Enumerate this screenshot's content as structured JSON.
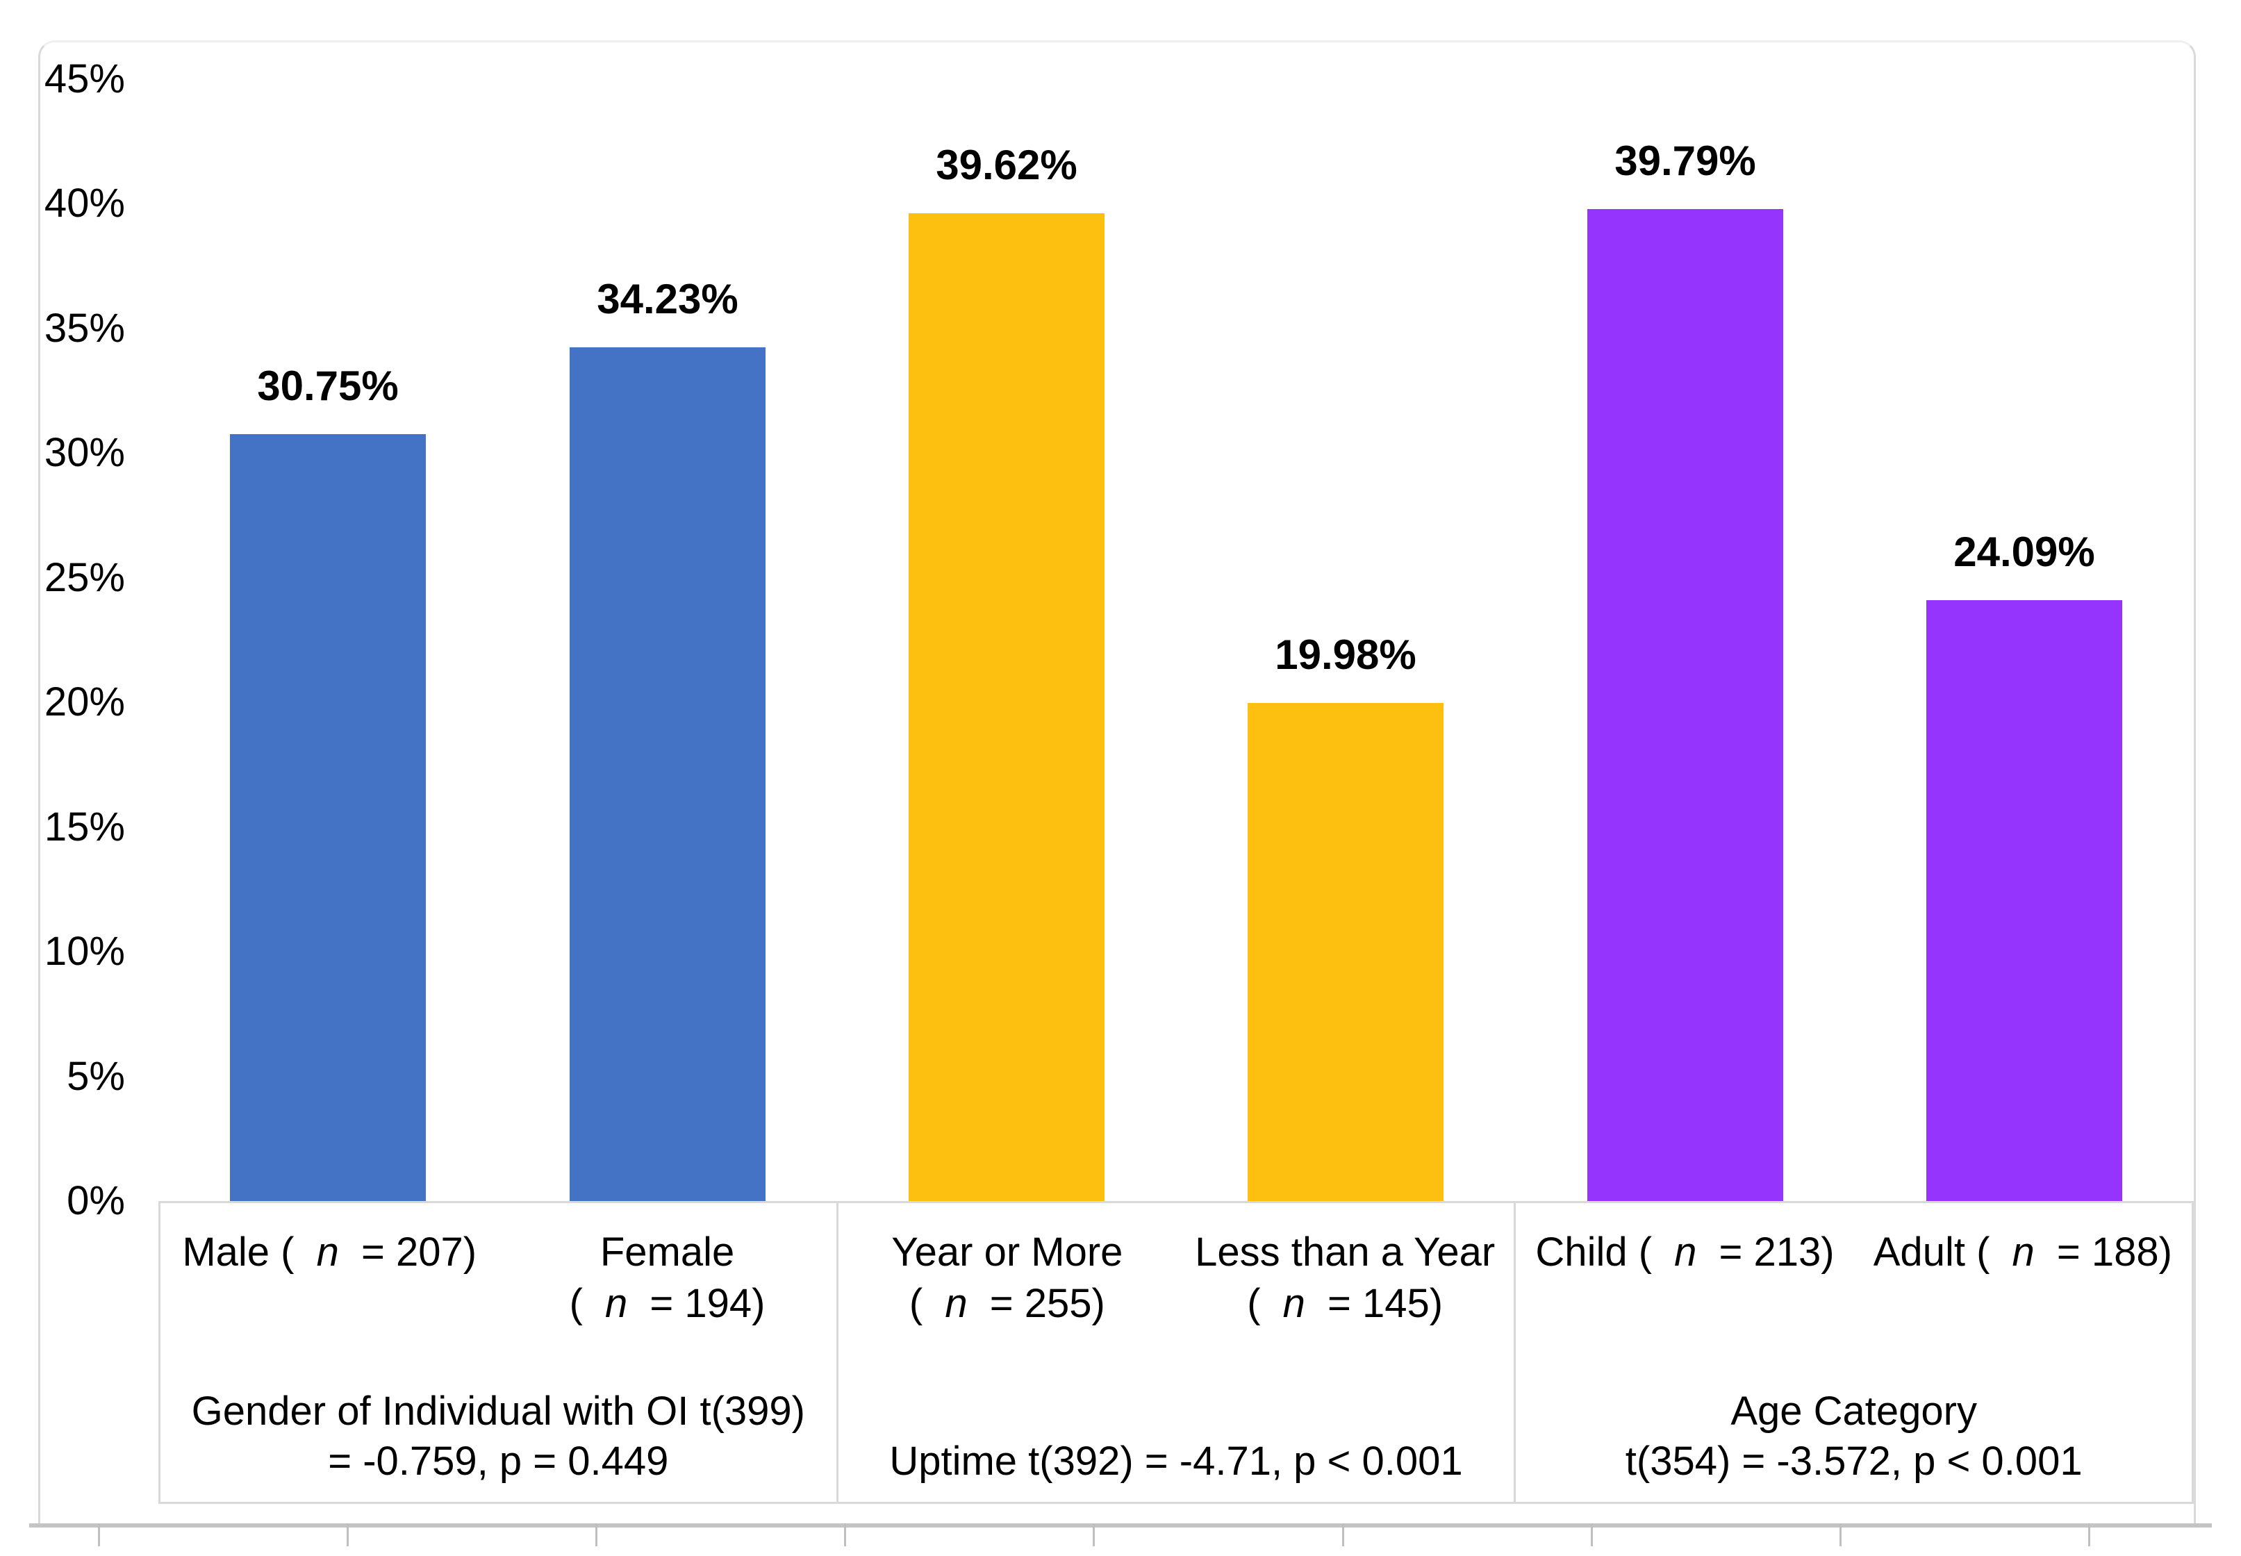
{
  "chart_data": {
    "type": "bar",
    "title": "",
    "xlabel": "",
    "ylabel": "",
    "ylim": [
      0,
      45
    ],
    "y_tick_step": 5,
    "y_ticks": [
      "0%",
      "5%",
      "10%",
      "15%",
      "20%",
      "25%",
      "30%",
      "35%",
      "40%",
      "45%"
    ],
    "grid": false,
    "legend": "none",
    "background": "#FFFFFF",
    "groups": [
      {
        "title_lines": [
          "Gender of Individual with OI t(399)",
          "= -0.759, p = 0.449"
        ],
        "color": "#4472C4",
        "bars": [
          {
            "label_lines": [
              "Male ( n = 207)"
            ],
            "value": 30.75,
            "data_label": "30.75%"
          },
          {
            "label_lines": [
              "Female",
              "( n = 194)"
            ],
            "value": 34.23,
            "data_label": "34.23%"
          }
        ]
      },
      {
        "title_lines": [
          "Uptime t(392) = -4.71, p < 0.001"
        ],
        "color": "#FDC011",
        "bars": [
          {
            "label_lines": [
              "Year or More",
              "( n = 255)"
            ],
            "value": 39.62,
            "data_label": "39.62%"
          },
          {
            "label_lines": [
              "Less than a Year",
              "( n = 145)"
            ],
            "value": 19.98,
            "data_label": "19.98%"
          }
        ]
      },
      {
        "title_lines": [
          "Age Category",
          "t(354) = -3.572, p < 0.001"
        ],
        "color": "#9434FC",
        "bars": [
          {
            "label_lines": [
              "Child ( n = 213)"
            ],
            "value": 39.79,
            "data_label": "39.79%"
          },
          {
            "label_lines": [
              "Adult ( n = 188)"
            ],
            "value": 24.09,
            "data_label": "24.09%"
          }
        ]
      }
    ],
    "colors": {
      "blue_series": "#4472C4",
      "yellow_series": "#FDC011",
      "purple_series": "#9434FC",
      "axis_line": "#BFBFBF",
      "table_border": "#D9D9D9",
      "text": "#000000"
    }
  }
}
